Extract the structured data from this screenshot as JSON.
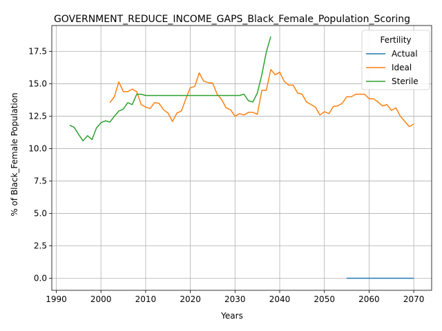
{
  "chart_data": {
    "type": "line",
    "title": "GOVERNMENT_REDUCE_INCOME_GAPS_Black_Female_Population_Scoring",
    "xlabel": "Years",
    "ylabel": "% of Black_Female Population",
    "xlim": [
      1989,
      2074
    ],
    "ylim": [
      -0.93,
      19.5
    ],
    "xticks": [
      1990,
      2000,
      2010,
      2020,
      2030,
      2040,
      2050,
      2060,
      2070
    ],
    "yticks": [
      0.0,
      2.5,
      5.0,
      7.5,
      10.0,
      12.5,
      15.0,
      17.5
    ],
    "ytick_labels": [
      "0.0",
      "2.5",
      "5.0",
      "7.5",
      "10.0",
      "12.5",
      "15.0",
      "17.5"
    ],
    "grid": true,
    "legend": {
      "title": "Fertility",
      "position": "top-right"
    },
    "series": [
      {
        "name": "Actual",
        "color": "#1f77b4",
        "x": [
          2055,
          2056,
          2057,
          2058,
          2059,
          2060,
          2061,
          2062,
          2063,
          2064,
          2065,
          2066,
          2067,
          2068,
          2069,
          2070
        ],
        "y": [
          0,
          0,
          0,
          0,
          0,
          0,
          0,
          0,
          0,
          0,
          0,
          0,
          0,
          0,
          0,
          0
        ]
      },
      {
        "name": "Ideal",
        "color": "#ff7f0e",
        "x": [
          2002,
          2003,
          2004,
          2005,
          2006,
          2007,
          2008,
          2009,
          2010,
          2011,
          2012,
          2013,
          2014,
          2015,
          2016,
          2017,
          2018,
          2019,
          2020,
          2021,
          2022,
          2023,
          2024,
          2025,
          2026,
          2027,
          2028,
          2029,
          2030,
          2031,
          2032,
          2033,
          2034,
          2035,
          2036,
          2037,
          2038,
          2039,
          2040,
          2041,
          2042,
          2043,
          2044,
          2045,
          2046,
          2047,
          2048,
          2049,
          2050,
          2051,
          2052,
          2053,
          2054,
          2055,
          2056,
          2057,
          2058,
          2059,
          2060,
          2061,
          2062,
          2063,
          2064,
          2065,
          2066,
          2067,
          2068,
          2069,
          2070
        ],
        "y": [
          13.55,
          14.0,
          15.15,
          14.4,
          14.4,
          14.6,
          14.4,
          13.4,
          13.2,
          13.1,
          13.55,
          13.5,
          13.0,
          12.75,
          12.1,
          12.75,
          12.9,
          13.85,
          14.7,
          14.8,
          15.85,
          15.2,
          15.1,
          15.05,
          14.2,
          13.8,
          13.15,
          13.0,
          12.5,
          12.7,
          12.6,
          12.8,
          12.8,
          12.65,
          14.5,
          14.5,
          16.1,
          15.7,
          15.9,
          15.2,
          14.9,
          14.9,
          14.3,
          14.2,
          13.6,
          13.4,
          13.2,
          12.6,
          12.85,
          12.7,
          13.25,
          13.3,
          13.5,
          14.0,
          14.0,
          14.2,
          14.2,
          14.2,
          13.85,
          13.85,
          13.6,
          13.3,
          13.4,
          12.95,
          13.15,
          12.5,
          12.1,
          11.7,
          11.9
        ]
      },
      {
        "name": "Sterile",
        "color": "#2ca02c",
        "x": [
          1993,
          1994,
          1995,
          1996,
          1997,
          1998,
          1999,
          2000,
          2001,
          2002,
          2003,
          2004,
          2005,
          2006,
          2007,
          2008,
          2009,
          2010,
          2011,
          2012,
          2013,
          2014,
          2015,
          2016,
          2017,
          2018,
          2019,
          2020,
          2021,
          2022,
          2023,
          2024,
          2025,
          2026,
          2027,
          2028,
          2029,
          2030,
          2031,
          2032,
          2033,
          2034,
          2035,
          2036,
          2037,
          2038
        ],
        "y": [
          11.8,
          11.65,
          11.1,
          10.6,
          11.0,
          10.7,
          11.6,
          12.0,
          12.15,
          12.05,
          12.5,
          12.9,
          13.05,
          13.55,
          13.4,
          14.2,
          14.2,
          14.1,
          14.1,
          14.1,
          14.1,
          14.1,
          14.1,
          14.1,
          14.1,
          14.1,
          14.1,
          14.1,
          14.1,
          14.1,
          14.1,
          14.1,
          14.1,
          14.1,
          14.1,
          14.1,
          14.1,
          14.1,
          14.1,
          14.2,
          13.7,
          13.6,
          14.3,
          15.7,
          17.45,
          18.65
        ]
      }
    ]
  }
}
